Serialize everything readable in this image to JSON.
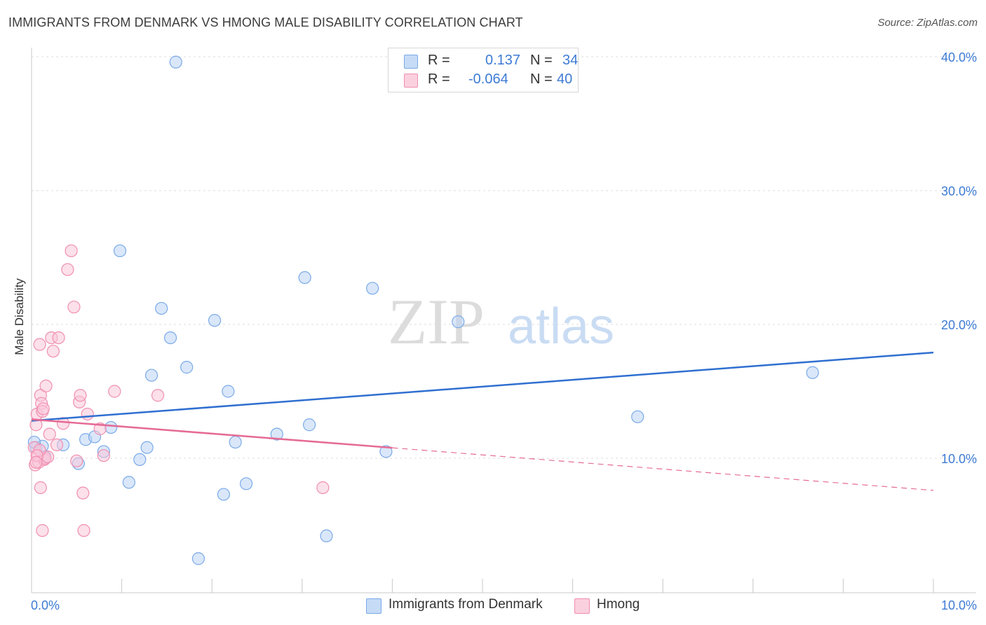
{
  "header": {
    "title": "IMMIGRANTS FROM DENMARK VS HMONG MALE DISABILITY CORRELATION CHART",
    "source": "Source: ZipAtlas.com"
  },
  "watermark": {
    "zip": "ZIP",
    "atlas": "atlas"
  },
  "legend": {
    "rows": [
      {
        "r_label": "R =",
        "r_value": "0.137",
        "n_label": "N =",
        "n_value": "34",
        "color": "#7aaae8"
      },
      {
        "r_label": "R =",
        "r_value": "-0.064",
        "n_label": "N =",
        "n_value": "40",
        "color": "#f08fb0"
      }
    ]
  },
  "bottom_legend": [
    {
      "label": "Immigrants from Denmark",
      "color": "#7aaae8"
    },
    {
      "label": "Hmong",
      "color": "#f08fb0"
    }
  ],
  "chart_data": {
    "type": "scatter",
    "title": "IMMIGRANTS FROM DENMARK VS HMONG MALE DISABILITY CORRELATION CHART",
    "xlabel": "",
    "ylabel": "Male Disability",
    "xlim": [
      0,
      10
    ],
    "ylim": [
      0,
      40
    ],
    "x_tick_labels": [
      "0.0%",
      "10.0%"
    ],
    "y_tick_values": [
      10,
      20,
      30,
      40
    ],
    "y_tick_labels": [
      "10.0%",
      "20.0%",
      "30.0%",
      "40.0%"
    ],
    "grid": true,
    "legend_position": "top-center",
    "series": [
      {
        "name": "Immigrants from Denmark",
        "color": "#7aaae8",
        "line_color": "#2f6fd0",
        "trend": {
          "x": [
            0.0,
            10.0
          ],
          "y": [
            12.8,
            17.9
          ],
          "dashed_from": null
        },
        "points": [
          [
            0.05,
            10.8
          ],
          [
            0.12,
            10.9
          ],
          [
            0.15,
            10.1
          ],
          [
            0.35,
            11.0
          ],
          [
            0.52,
            9.6
          ],
          [
            0.6,
            11.4
          ],
          [
            0.7,
            11.6
          ],
          [
            0.8,
            10.5
          ],
          [
            0.88,
            12.3
          ],
          [
            0.98,
            25.5
          ],
          [
            1.08,
            8.2
          ],
          [
            1.2,
            9.9
          ],
          [
            1.28,
            10.8
          ],
          [
            1.33,
            16.2
          ],
          [
            1.44,
            21.2
          ],
          [
            1.54,
            19.0
          ],
          [
            1.6,
            39.6
          ],
          [
            1.72,
            16.8
          ],
          [
            1.85,
            2.5
          ],
          [
            2.03,
            20.3
          ],
          [
            2.13,
            7.3
          ],
          [
            2.18,
            15.0
          ],
          [
            2.26,
            11.2
          ],
          [
            2.38,
            8.1
          ],
          [
            2.72,
            11.8
          ],
          [
            3.03,
            23.5
          ],
          [
            3.08,
            12.5
          ],
          [
            3.27,
            4.2
          ],
          [
            3.78,
            22.7
          ],
          [
            3.93,
            10.5
          ],
          [
            4.73,
            20.2
          ],
          [
            6.72,
            13.1
          ],
          [
            8.66,
            16.4
          ],
          [
            0.03,
            11.2
          ]
        ]
      },
      {
        "name": "Hmong",
        "color": "#f08fb0",
        "line_color": "#e56b95",
        "trend": {
          "x": [
            0.0,
            10.0
          ],
          "y": [
            12.9,
            7.6
          ],
          "dashed_from": 4.0
        },
        "points": [
          [
            0.03,
            10.8
          ],
          [
            0.04,
            9.5
          ],
          [
            0.05,
            12.5
          ],
          [
            0.06,
            13.3
          ],
          [
            0.07,
            10.2
          ],
          [
            0.08,
            9.7
          ],
          [
            0.09,
            18.5
          ],
          [
            0.1,
            14.7
          ],
          [
            0.11,
            14.1
          ],
          [
            0.12,
            13.5
          ],
          [
            0.13,
            13.7
          ],
          [
            0.14,
            9.9
          ],
          [
            0.15,
            10.0
          ],
          [
            0.16,
            15.4
          ],
          [
            0.18,
            10.1
          ],
          [
            0.2,
            11.8
          ],
          [
            0.22,
            19.0
          ],
          [
            0.24,
            18.0
          ],
          [
            0.28,
            11.0
          ],
          [
            0.3,
            19.0
          ],
          [
            0.35,
            12.6
          ],
          [
            0.4,
            24.1
          ],
          [
            0.44,
            25.5
          ],
          [
            0.47,
            21.3
          ],
          [
            0.5,
            9.8
          ],
          [
            0.53,
            14.2
          ],
          [
            0.54,
            14.7
          ],
          [
            0.57,
            7.4
          ],
          [
            0.58,
            4.6
          ],
          [
            0.62,
            13.3
          ],
          [
            0.76,
            12.2
          ],
          [
            0.8,
            10.2
          ],
          [
            0.92,
            15.0
          ],
          [
            1.4,
            14.7
          ],
          [
            3.23,
            7.8
          ],
          [
            0.1,
            7.8
          ],
          [
            0.12,
            4.6
          ],
          [
            0.09,
            10.6
          ],
          [
            0.06,
            10.2
          ],
          [
            0.05,
            9.7
          ]
        ]
      }
    ]
  }
}
